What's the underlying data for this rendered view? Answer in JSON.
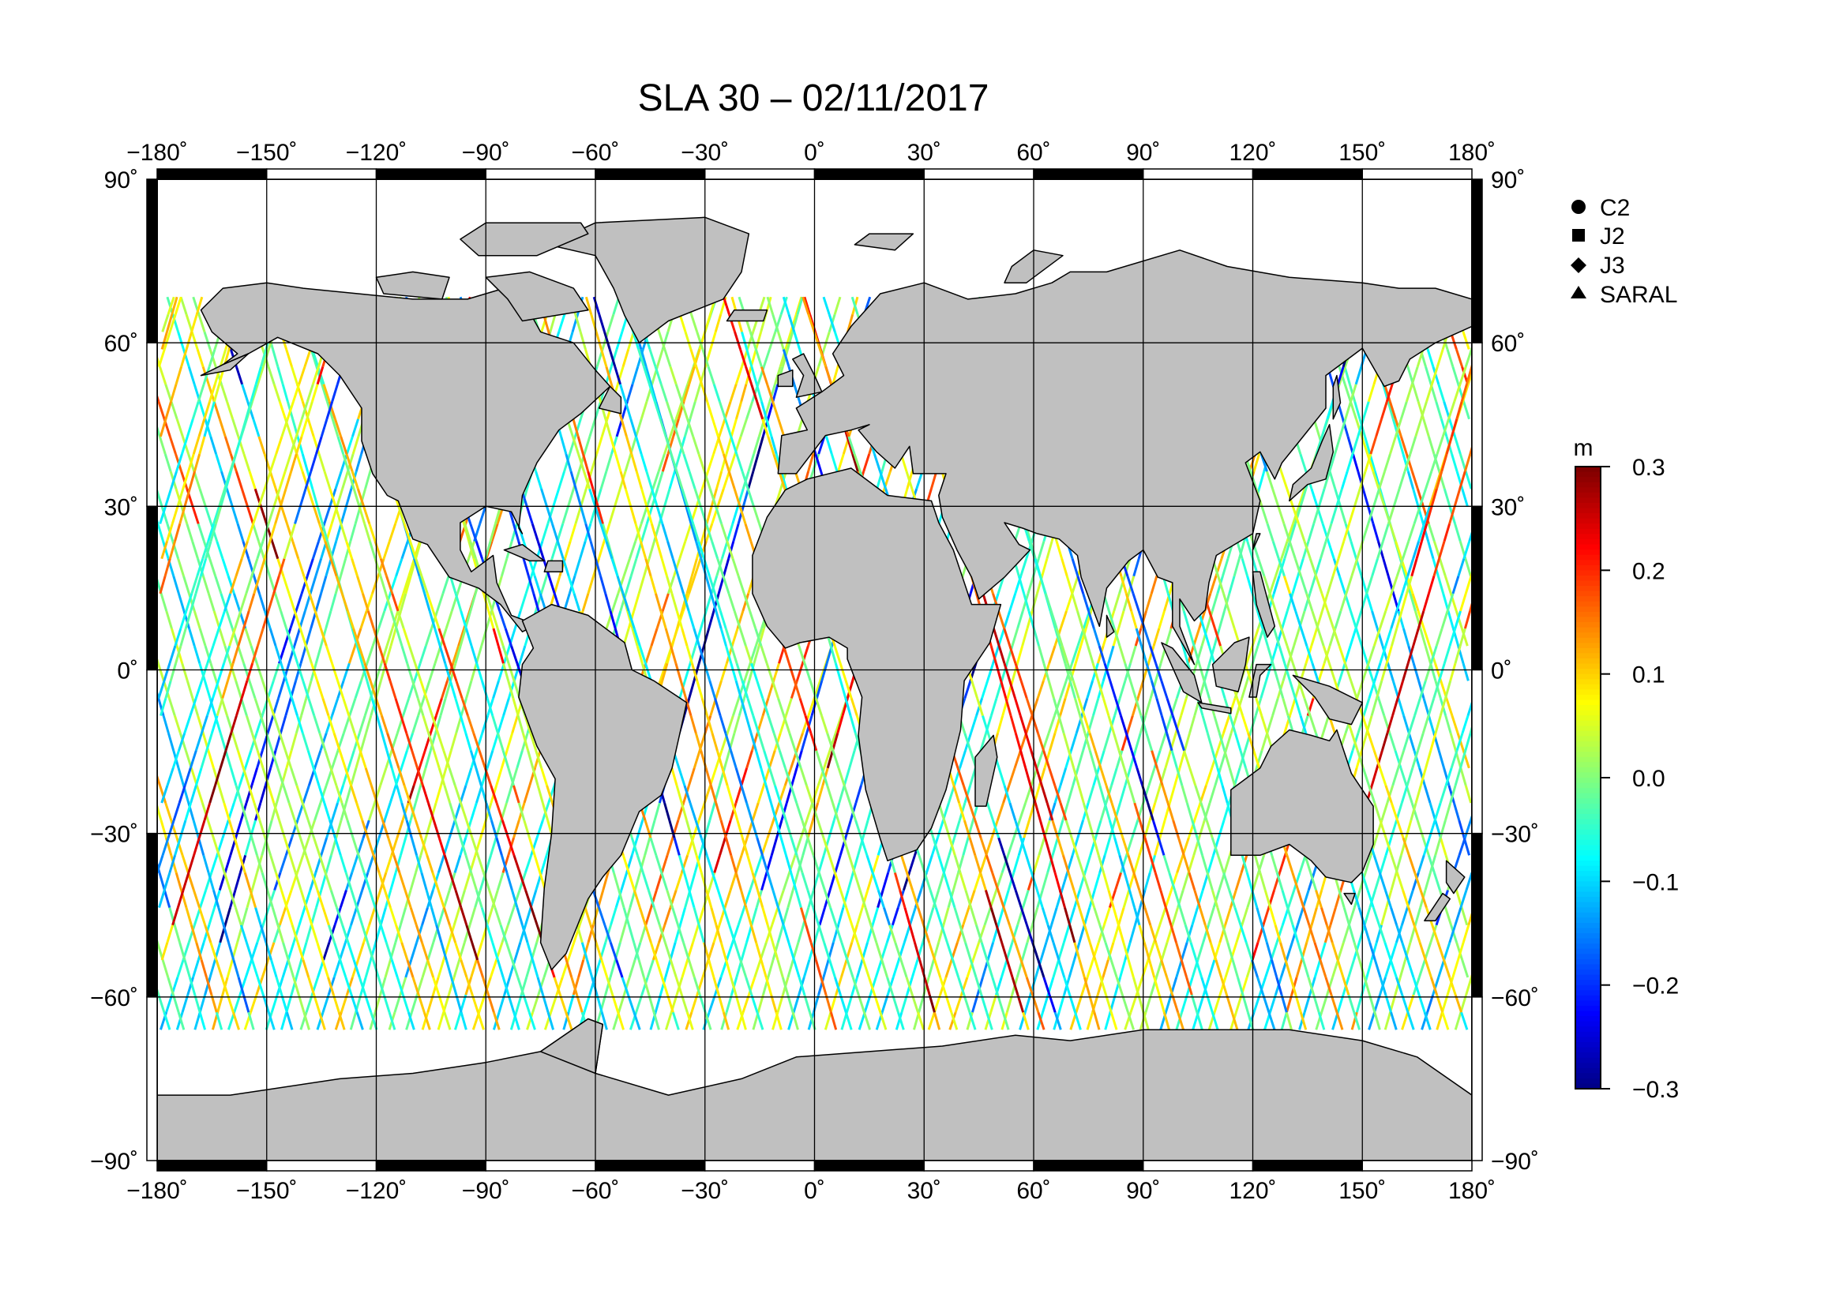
{
  "title": "SLA 30 – 02/11/2017",
  "map": {
    "lon_ticks": [
      "−180˚",
      "−150˚",
      "−120˚",
      "−90˚",
      "−60˚",
      "−30˚",
      "0˚",
      "30˚",
      "60˚",
      "90˚",
      "120˚",
      "150˚",
      "180˚"
    ],
    "lat_ticks": [
      "90˚",
      "60˚",
      "30˚",
      "0˚",
      "−30˚",
      "−60˚",
      "−90˚"
    ],
    "land_color": "#c0c0c0",
    "ocean_color": "#ffffff",
    "grid_color": "#000000"
  },
  "legend": {
    "items": [
      {
        "label": "C2",
        "symbol": "circle"
      },
      {
        "label": "J2",
        "symbol": "square"
      },
      {
        "label": "J3",
        "symbol": "diamond"
      },
      {
        "label": "SARAL",
        "symbol": "triangle"
      }
    ]
  },
  "colorbar": {
    "unit": "m",
    "min": -0.3,
    "max": 0.3,
    "tick_labels": [
      "0.3",
      "0.2",
      "0.1",
      "0.0",
      "−0.1",
      "−0.2",
      "−0.3"
    ],
    "colormap": [
      "#00007f",
      "#0000ff",
      "#007fff",
      "#00ffff",
      "#7fff7f",
      "#ffff00",
      "#ff7f00",
      "#ff0000",
      "#7f0000"
    ]
  },
  "chart_data": {
    "type": "map",
    "title": "SLA 30 – 02/11/2017",
    "projection": "equirectangular",
    "xlim": [
      -180,
      180
    ],
    "ylim": [
      -90,
      90
    ],
    "x_ticks": [
      -180,
      -150,
      -120,
      -90,
      -60,
      -30,
      0,
      30,
      60,
      90,
      120,
      150,
      180
    ],
    "y_ticks": [
      90,
      60,
      30,
      0,
      -30,
      -60,
      -90
    ],
    "grid": true,
    "track_coverage_lat": [
      -66,
      66
    ],
    "value_range": [
      -0.3,
      0.3
    ],
    "value_unit": "m",
    "missions": [
      "C2",
      "J2",
      "J3",
      "SARAL"
    ]
  }
}
